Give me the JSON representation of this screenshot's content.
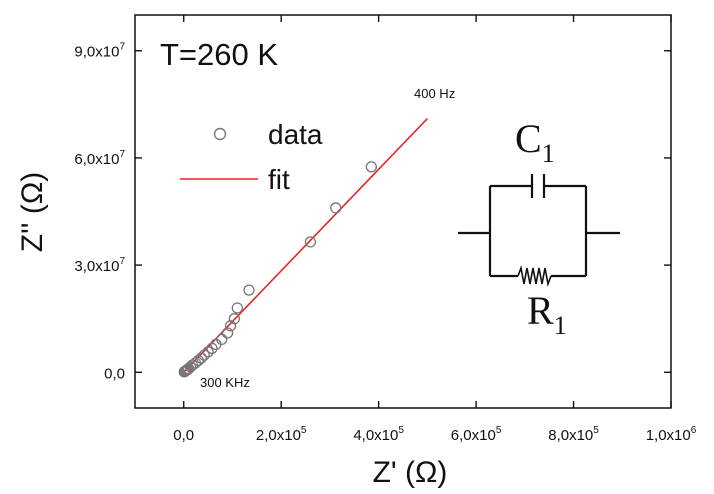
{
  "chart_data": {
    "type": "scatter",
    "title": "",
    "xlabel": "Z' (Ω)",
    "ylabel": "Z'' (Ω)",
    "xlim": [
      -100000,
      1000000
    ],
    "ylim": [
      -10000000,
      100000000
    ],
    "x_ticks": [
      0,
      200000,
      400000,
      600000,
      800000,
      1000000
    ],
    "y_ticks": [
      0,
      30000000,
      60000000,
      90000000
    ],
    "x_tick_labels": [
      {
        "mantissa": "0,0",
        "exp": ""
      },
      {
        "mantissa": "2,0x10",
        "exp": "5"
      },
      {
        "mantissa": "4,0x10",
        "exp": "5"
      },
      {
        "mantissa": "6,0x10",
        "exp": "5"
      },
      {
        "mantissa": "8,0x10",
        "exp": "5"
      },
      {
        "mantissa": "1,0x10",
        "exp": "6"
      }
    ],
    "y_tick_labels": [
      {
        "mantissa": "0,0",
        "exp": ""
      },
      {
        "mantissa": "3,0x10",
        "exp": "7"
      },
      {
        "mantissa": "6,0x10",
        "exp": "7"
      },
      {
        "mantissa": "9,0x10",
        "exp": "7"
      }
    ],
    "series": [
      {
        "name": "data",
        "kind": "scatter",
        "marker": "open-circle",
        "color": "#777777",
        "x": [
          1000,
          2000,
          4000,
          6000,
          8000,
          10000,
          14000,
          18000,
          24000,
          30000,
          36000,
          42000,
          50000,
          58000,
          66000,
          78000,
          90000,
          96000,
          104000,
          110000,
          134000,
          260000,
          312000,
          385000
        ],
        "y": [
          100000,
          200000,
          400000,
          600000,
          800000,
          1000000,
          1500000,
          2000000,
          2600000,
          3300000,
          4000000,
          4800000,
          5700000,
          6700000,
          7800000,
          9200000,
          11000000,
          13000000,
          15000000,
          18000000,
          23000000,
          36500000,
          46000000,
          57500000
        ]
      },
      {
        "name": "fit",
        "kind": "line",
        "color": "#e8242a",
        "x": [
          0,
          500000
        ],
        "y": [
          0,
          71000000
        ]
      }
    ],
    "legend": {
      "position": "top-left",
      "items": [
        "data",
        "fit"
      ]
    },
    "annotations": {
      "temperature": "T=260 K",
      "low_freq": "400 Hz",
      "high_freq": "300 KHz"
    },
    "circuit": {
      "capacitor": "C",
      "capacitor_sub": "1",
      "resistor": "R",
      "resistor_sub": "1"
    }
  }
}
